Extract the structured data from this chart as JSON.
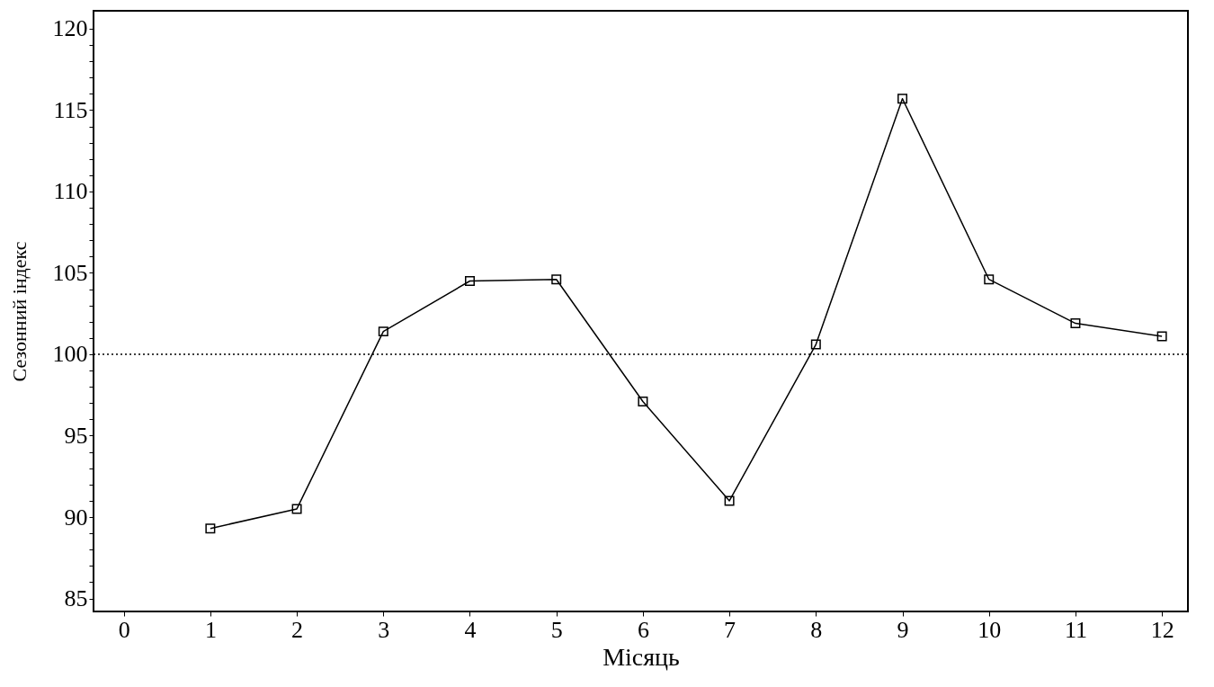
{
  "chart_data": {
    "type": "line",
    "xlabel": "Місяць",
    "ylabel": "Сезонний індекс",
    "x": [
      1,
      2,
      3,
      4,
      5,
      6,
      7,
      8,
      9,
      10,
      11,
      12
    ],
    "series": [
      {
        "color": "#000000",
        "values": [
          89.3,
          90.5,
          101.4,
          104.5,
          104.6,
          97.1,
          91.0,
          100.6,
          115.7,
          104.6,
          101.9,
          101.1
        ]
      }
    ],
    "xlim": [
      -0.35,
      12.3
    ],
    "xticks": [
      0,
      1,
      2,
      3,
      4,
      5,
      6,
      7,
      8,
      9,
      10,
      11,
      12
    ],
    "ylim": [
      84.2,
      121.1
    ],
    "yticks": [
      85,
      {
        "value": 86,
        "label": null
      },
      {
        "value": 87,
        "label": null
      },
      {
        "value": 88,
        "label": null
      },
      {
        "value": 89,
        "label": null
      },
      90,
      {
        "value": 91,
        "label": null
      },
      {
        "value": 92,
        "label": null
      },
      {
        "value": 93,
        "label": null
      },
      {
        "value": 94,
        "label": null
      },
      95,
      {
        "value": 96,
        "label": null
      },
      {
        "value": 97,
        "label": null
      },
      {
        "value": 98,
        "label": null
      },
      {
        "value": 99,
        "label": null
      },
      100,
      {
        "value": 101,
        "label": null
      },
      {
        "value": 102,
        "label": null
      },
      {
        "value": 103,
        "label": null
      },
      {
        "value": 104,
        "label": null
      },
      105,
      {
        "value": 106,
        "label": null
      },
      {
        "value": 107,
        "label": null
      },
      {
        "value": 108,
        "label": null
      },
      {
        "value": 109,
        "label": null
      },
      110,
      {
        "value": 111,
        "label": null
      },
      {
        "value": 112,
        "label": null
      },
      {
        "value": 113,
        "label": null
      },
      {
        "value": 114,
        "label": null
      },
      115,
      {
        "value": 116,
        "label": null
      },
      {
        "value": 117,
        "label": null
      },
      {
        "value": 118,
        "label": null
      },
      {
        "value": 119,
        "label": null
      },
      120
    ],
    "ref_lines": [
      {
        "axis": "y",
        "value": 100,
        "line_style": "dotted",
        "color": "#000000"
      }
    ],
    "marker": "square",
    "line_style": "solid",
    "grid": false
  }
}
